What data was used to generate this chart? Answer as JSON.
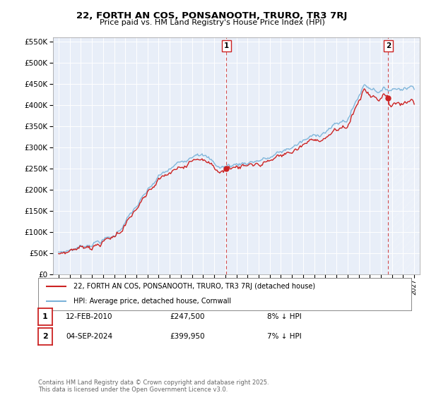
{
  "title": "22, FORTH AN COS, PONSANOOTH, TRURO, TR3 7RJ",
  "subtitle": "Price paid vs. HM Land Registry's House Price Index (HPI)",
  "hpi_color": "#7ab3d9",
  "price_color": "#cc2222",
  "dashed_line_color": "#cc2222",
  "background_color": "#ffffff",
  "plot_bg_color": "#e8eef8",
  "grid_color": "#ffffff",
  "ylim": [
    0,
    560000
  ],
  "yticks": [
    0,
    50000,
    100000,
    150000,
    200000,
    250000,
    300000,
    350000,
    400000,
    450000,
    500000,
    550000
  ],
  "xlim_start": 1994.5,
  "xlim_end": 2027.5,
  "t1_year": 2010.1,
  "t2_year": 2024.67,
  "t1_price": 247500,
  "t2_price": 399950,
  "legend_entry1": "22, FORTH AN COS, PONSANOOTH, TRURO, TR3 7RJ (detached house)",
  "legend_entry2": "HPI: Average price, detached house, Cornwall",
  "footer": "Contains HM Land Registry data © Crown copyright and database right 2025.\nThis data is licensed under the Open Government Licence v3.0.",
  "table_rows": [
    {
      "num": "1",
      "date": "12-FEB-2010",
      "price": "£247,500",
      "pct": "8% ↓ HPI"
    },
    {
      "num": "2",
      "date": "04-SEP-2024",
      "price": "£399,950",
      "pct": "7% ↓ HPI"
    }
  ]
}
